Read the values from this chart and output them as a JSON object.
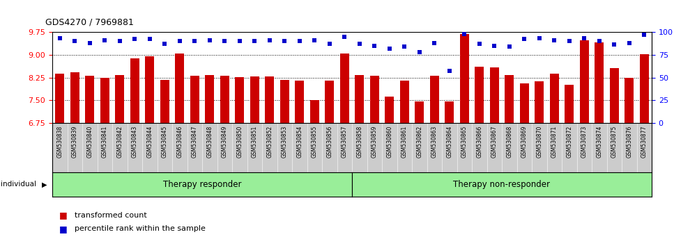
{
  "title": "GDS4270 / 7969881",
  "categories": [
    "GSM530838",
    "GSM530839",
    "GSM530840",
    "GSM530841",
    "GSM530842",
    "GSM530843",
    "GSM530844",
    "GSM530845",
    "GSM530846",
    "GSM530847",
    "GSM530848",
    "GSM530849",
    "GSM530850",
    "GSM530851",
    "GSM530852",
    "GSM530853",
    "GSM530854",
    "GSM530855",
    "GSM530856",
    "GSM530857",
    "GSM530858",
    "GSM530859",
    "GSM530860",
    "GSM530861",
    "GSM530862",
    "GSM530863",
    "GSM530864",
    "GSM530865",
    "GSM530866",
    "GSM530867",
    "GSM530868",
    "GSM530869",
    "GSM530870",
    "GSM530871",
    "GSM530872",
    "GSM530873",
    "GSM530874",
    "GSM530875",
    "GSM530876",
    "GSM530877"
  ],
  "bar_vals": [
    8.38,
    8.42,
    8.3,
    8.24,
    8.32,
    8.87,
    8.94,
    8.17,
    9.05,
    8.3,
    8.32,
    8.3,
    8.26,
    8.28,
    8.28,
    8.18,
    8.14,
    7.51,
    8.15,
    9.04,
    8.32,
    8.3,
    7.62,
    8.15,
    7.47,
    8.3,
    7.47,
    9.68,
    8.6,
    8.58,
    8.32,
    8.05,
    8.12,
    8.37,
    8.02,
    9.47,
    9.4,
    8.56,
    8.24,
    9.02
  ],
  "pct_vals": [
    93,
    90,
    88,
    91,
    90,
    92,
    92,
    87,
    90,
    90,
    91,
    90,
    90,
    90,
    91,
    90,
    90,
    91,
    87,
    95,
    87,
    85,
    82,
    84,
    78,
    88,
    57,
    98,
    87,
    85,
    84,
    92,
    93,
    91,
    90,
    93,
    90,
    86,
    88,
    97
  ],
  "group1_count": 20,
  "group1_label": "Therapy responder",
  "group2_label": "Therapy non-responder",
  "ylim_left": [
    6.75,
    9.75
  ],
  "ylim_right": [
    0,
    100
  ],
  "yticks_left": [
    6.75,
    7.5,
    8.25,
    9.0,
    9.75
  ],
  "yticks_right": [
    0,
    25,
    50,
    75,
    100
  ],
  "bar_color": "#cc0000",
  "dot_color": "#0000cc",
  "bar_width": 0.6,
  "tick_area_color": "#cccccc",
  "group_bg_color": "#99ee99",
  "individual_label": "individual",
  "legend_bar_label": "transformed count",
  "legend_dot_label": "percentile rank within the sample"
}
